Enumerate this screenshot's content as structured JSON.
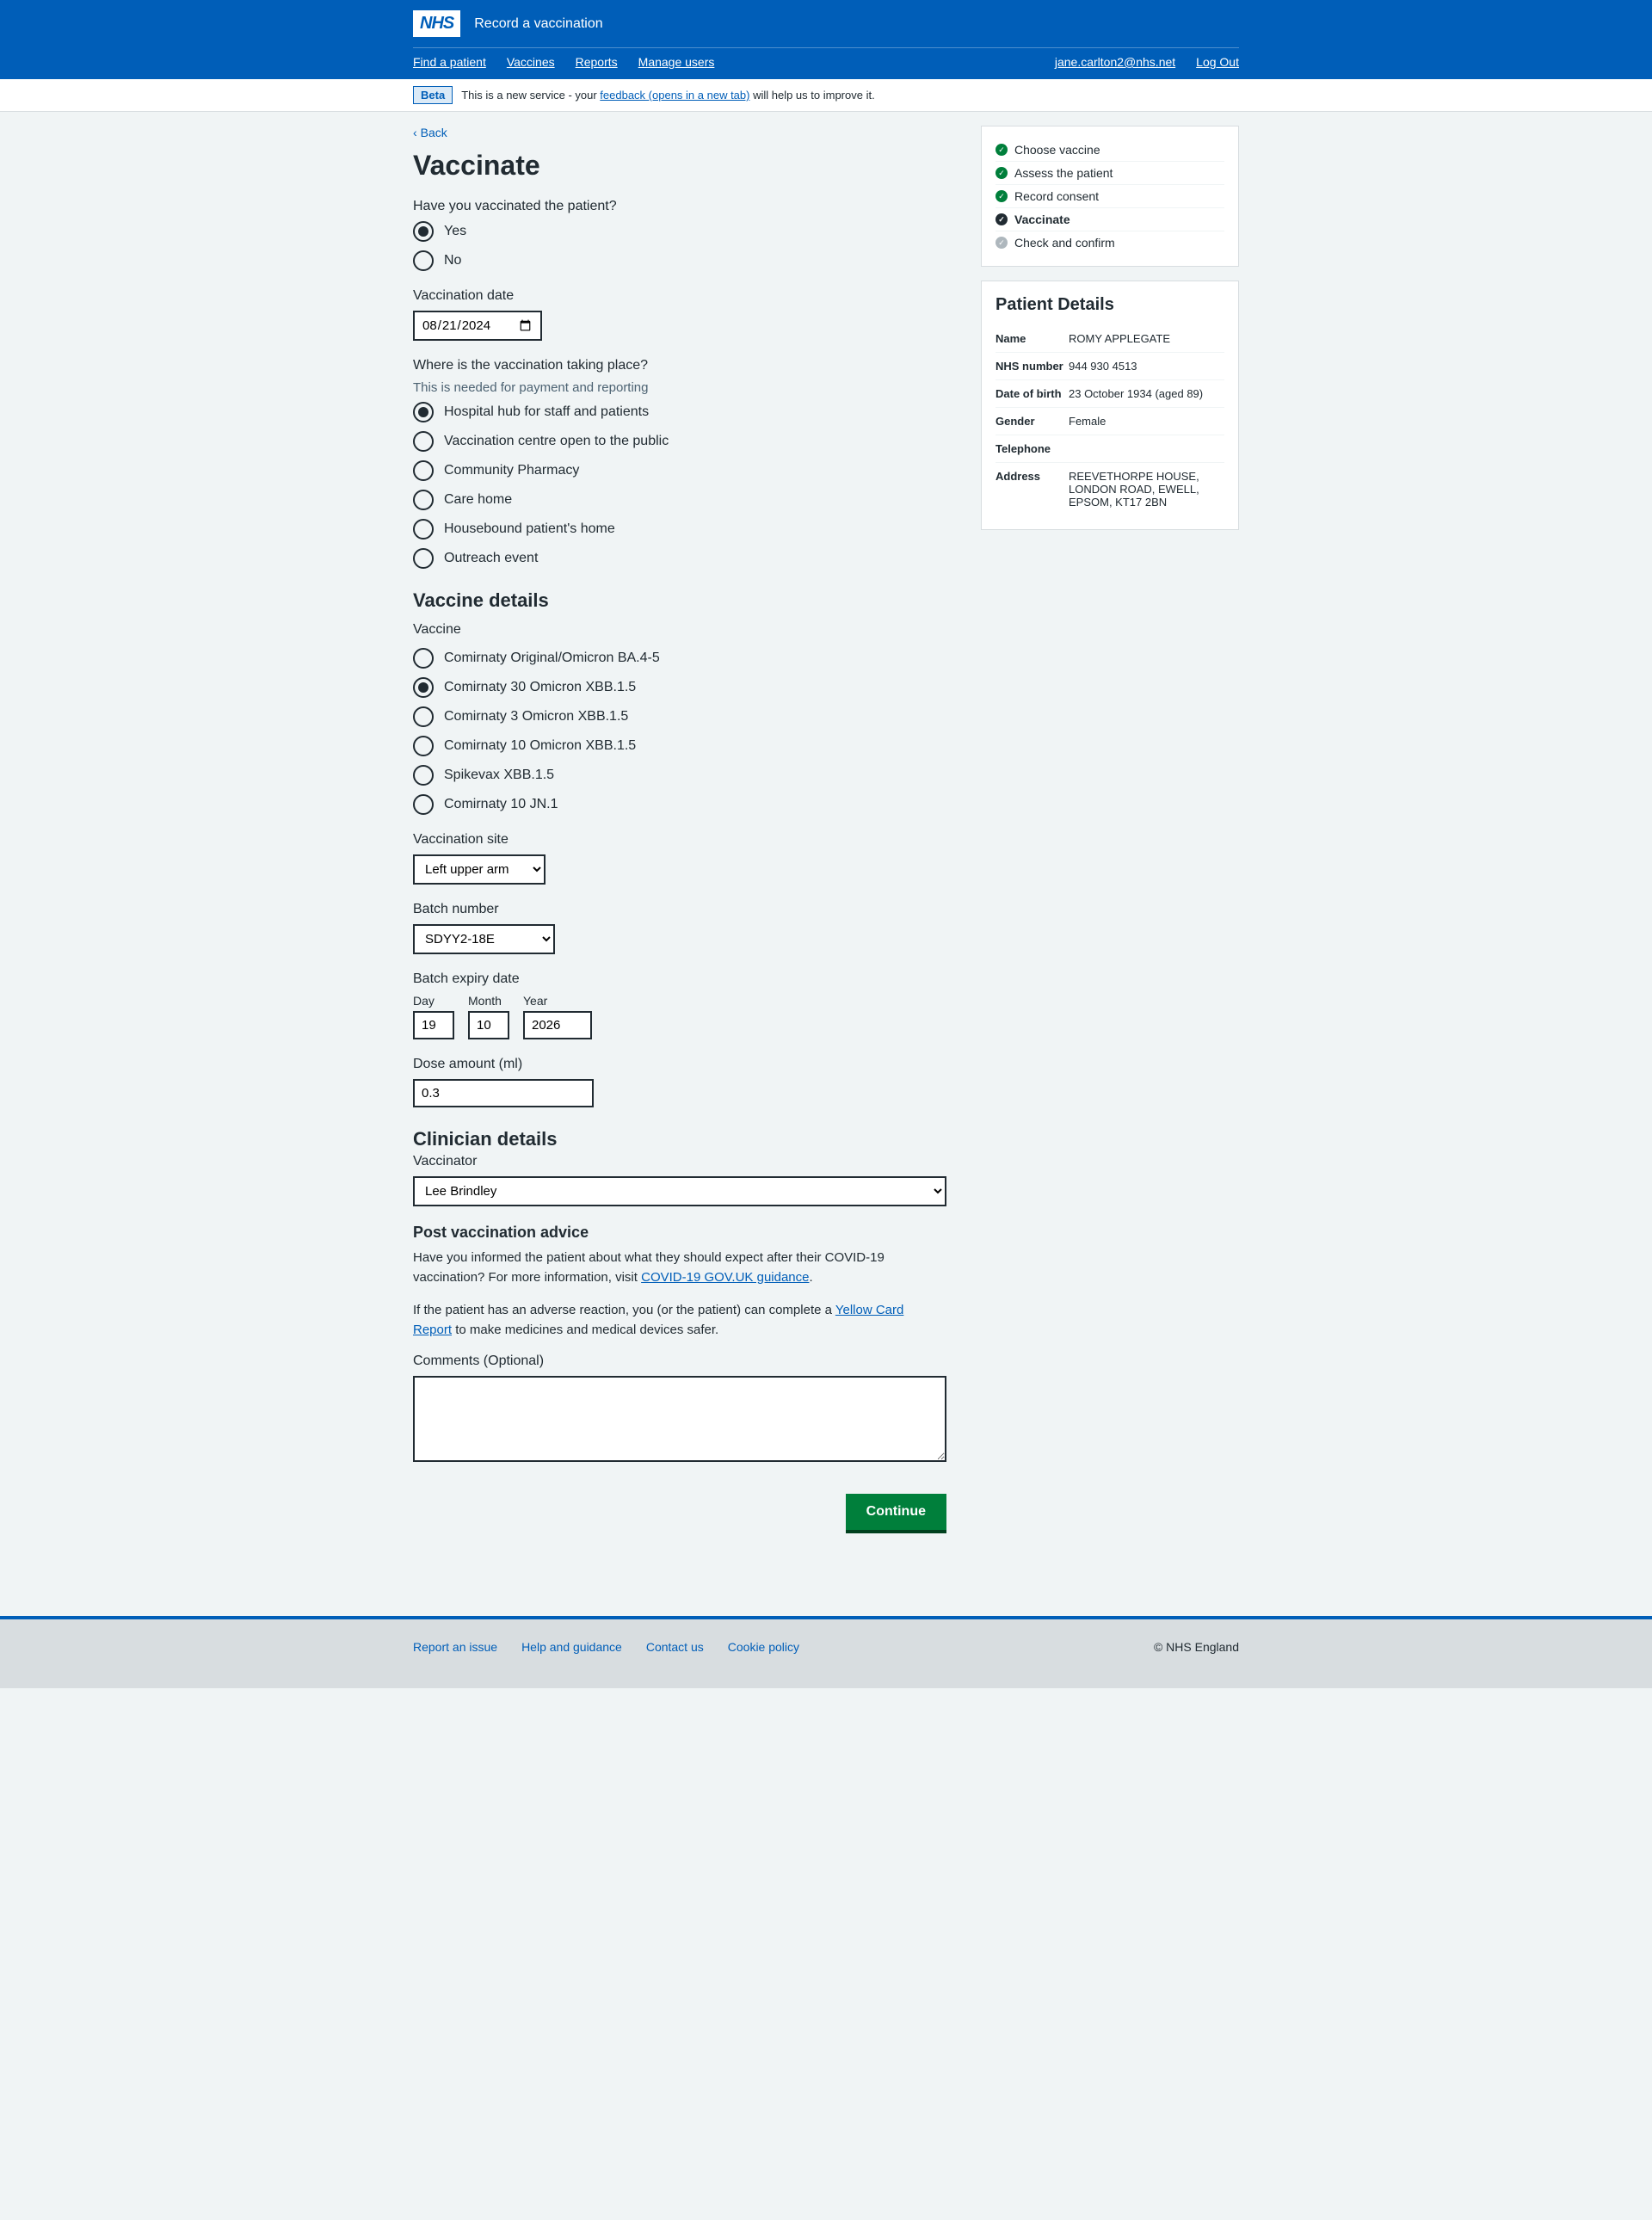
{
  "header": {
    "logo": "NHS",
    "service_name": "Record a vaccination",
    "nav": {
      "find_patient": "Find a patient",
      "vaccines": "Vaccines",
      "reports": "Reports",
      "manage_users": "Manage users",
      "user_email": "jane.carlton2@nhs.net",
      "logout": "Log Out"
    }
  },
  "beta": {
    "tag": "Beta",
    "text_before": "This is a new service - your ",
    "link": "feedback (opens in a new tab)",
    "text_after": " will help us to improve it."
  },
  "back": "Back",
  "page_title": "Vaccinate",
  "q_vaccinated": {
    "label": "Have you vaccinated the patient?",
    "yes": "Yes",
    "no": "No",
    "selected": "yes"
  },
  "vacc_date": {
    "label": "Vaccination date",
    "value": "2024-08-21"
  },
  "location": {
    "label": "Where is the vaccination taking place?",
    "hint": "This is needed for payment and reporting",
    "options": [
      "Hospital hub for staff and patients",
      "Vaccination centre open to the public",
      "Community Pharmacy",
      "Care home",
      "Housebound patient's home",
      "Outreach event"
    ],
    "selected": 0
  },
  "vaccine_details_heading": "Vaccine details",
  "vaccine": {
    "label": "Vaccine",
    "options": [
      "Comirnaty Original/Omicron BA.4-5",
      "Comirnaty 30 Omicron XBB.1.5",
      "Comirnaty 3 Omicron XBB.1.5",
      "Comirnaty 10 Omicron XBB.1.5",
      "Spikevax XBB.1.5",
      "Comirnaty 10 JN.1"
    ],
    "selected": 1
  },
  "site": {
    "label": "Vaccination site",
    "value": "Left upper arm"
  },
  "batch": {
    "label": "Batch number",
    "value": "SDYY2-18E"
  },
  "expiry": {
    "label": "Batch expiry date",
    "day_label": "Day",
    "month_label": "Month",
    "year_label": "Year",
    "day": "19",
    "month": "10",
    "year": "2026"
  },
  "dose": {
    "label": "Dose amount (ml)",
    "value": "0.3"
  },
  "clinician_heading": "Clinician details",
  "vaccinator": {
    "label": "Vaccinator",
    "value": "Lee Brindley"
  },
  "advice": {
    "heading": "Post vaccination advice",
    "p1_a": "Have you informed the patient about what they should expect after their COVID-19 vaccination? For more information, visit ",
    "p1_link": "COVID-19 GOV.UK guidance",
    "p1_b": ".",
    "p2_a": "If the patient has an adverse reaction, you (or the patient) can complete a ",
    "p2_link": "Yellow Card Report",
    "p2_b": " to make medicines and medical devices safer."
  },
  "comments": {
    "label": "Comments (Optional)"
  },
  "continue": "Continue",
  "steps": [
    {
      "label": "Choose vaccine",
      "state": "done"
    },
    {
      "label": "Assess the patient",
      "state": "done"
    },
    {
      "label": "Record consent",
      "state": "done"
    },
    {
      "label": "Vaccinate",
      "state": "current"
    },
    {
      "label": "Check and confirm",
      "state": "pending"
    }
  ],
  "patient": {
    "heading": "Patient Details",
    "rows": {
      "name_k": "Name",
      "name_v": "ROMY APPLEGATE",
      "nhs_k": "NHS number",
      "nhs_v": "944 930 4513",
      "dob_k": "Date of birth",
      "dob_v": "23 October 1934 (aged 89)",
      "gender_k": "Gender",
      "gender_v": "Female",
      "tel_k": "Telephone",
      "tel_v": "",
      "addr_k": "Address",
      "addr_v": "REEVETHORPE HOUSE, LONDON ROAD, EWELL, EPSOM, KT17 2BN"
    }
  },
  "footer": {
    "links": {
      "report": "Report an issue",
      "help": "Help and guidance",
      "contact": "Contact us",
      "cookie": "Cookie policy"
    },
    "copyright": "© NHS England"
  }
}
